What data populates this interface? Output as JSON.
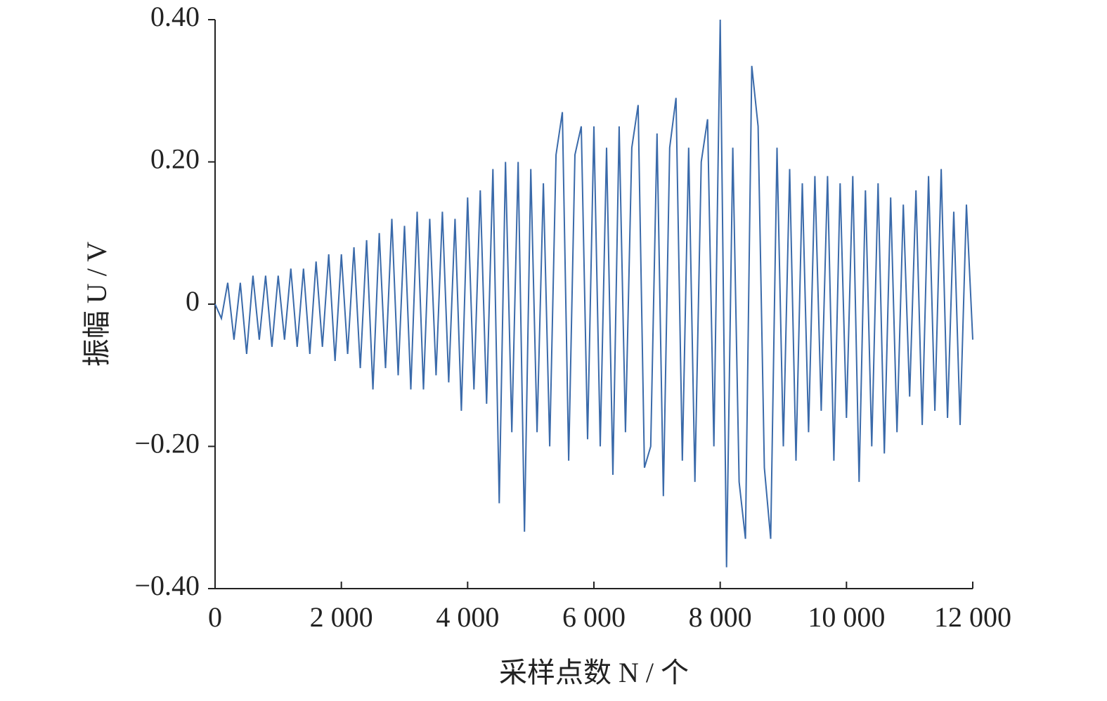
{
  "chart_data": {
    "type": "line",
    "xlabel": "采样点数 N / 个",
    "ylabel": "振幅 U / V",
    "x": [
      0,
      100,
      200,
      300,
      400,
      500,
      600,
      700,
      800,
      900,
      1000,
      1100,
      1200,
      1300,
      1400,
      1500,
      1600,
      1700,
      1800,
      1900,
      2000,
      2100,
      2200,
      2300,
      2400,
      2500,
      2600,
      2700,
      2800,
      2900,
      3000,
      3100,
      3200,
      3300,
      3400,
      3500,
      3600,
      3700,
      3800,
      3900,
      4000,
      4100,
      4200,
      4300,
      4400,
      4500,
      4600,
      4700,
      4800,
      4900,
      5000,
      5100,
      5200,
      5300,
      5400,
      5500,
      5600,
      5700,
      5800,
      5900,
      6000,
      6100,
      6200,
      6300,
      6400,
      6500,
      6600,
      6700,
      6800,
      6900,
      7000,
      7100,
      7200,
      7300,
      7400,
      7500,
      7600,
      7700,
      7800,
      7900,
      8000,
      8100,
      8200,
      8300,
      8400,
      8500,
      8600,
      8700,
      8800,
      8900,
      9000,
      9100,
      9200,
      9300,
      9400,
      9500,
      9600,
      9700,
      9800,
      9900,
      10000,
      10100,
      10200,
      10300,
      10400,
      10500,
      10600,
      10700,
      10800,
      10900,
      11000,
      11100,
      11200,
      11300,
      11400,
      11500,
      11600,
      11700,
      11800,
      11900,
      12000
    ],
    "series": [
      {
        "color": "#3a6aaa",
        "values": [
          0,
          -0.02,
          0.03,
          -0.05,
          0.03,
          -0.07,
          0.04,
          -0.05,
          0.04,
          -0.06,
          0.04,
          -0.05,
          0.05,
          -0.06,
          0.05,
          -0.07,
          0.06,
          -0.06,
          0.07,
          -0.08,
          0.07,
          -0.07,
          0.08,
          -0.09,
          0.09,
          -0.12,
          0.1,
          -0.09,
          0.12,
          -0.1,
          0.11,
          -0.12,
          0.13,
          -0.12,
          0.12,
          -0.1,
          0.13,
          -0.11,
          0.12,
          -0.15,
          0.15,
          -0.12,
          0.16,
          -0.14,
          0.19,
          -0.28,
          0.2,
          -0.18,
          0.2,
          -0.32,
          0.19,
          -0.18,
          0.17,
          -0.2,
          0.21,
          0.27,
          -0.22,
          0.21,
          0.25,
          -0.19,
          0.25,
          -0.2,
          0.22,
          -0.24,
          0.25,
          -0.18,
          0.22,
          0.28,
          -0.23,
          -0.2,
          0.24,
          -0.27,
          0.22,
          0.29,
          -0.22,
          0.22,
          -0.25,
          0.2,
          0.26,
          -0.2,
          0.4,
          -0.37,
          0.22,
          -0.25,
          -0.33,
          0.335,
          0.25,
          -0.23,
          -0.33,
          0.22,
          -0.2,
          0.19,
          -0.22,
          0.17,
          -0.18,
          0.18,
          -0.15,
          0.18,
          -0.22,
          0.17,
          -0.16,
          0.18,
          -0.25,
          0.16,
          -0.2,
          0.17,
          -0.21,
          0.15,
          -0.18,
          0.14,
          -0.13,
          0.16,
          -0.17,
          0.18,
          -0.15,
          0.19,
          -0.16,
          0.13,
          -0.17,
          0.14,
          -0.05
        ]
      }
    ],
    "xlim": [
      0,
      12000
    ],
    "xticks": [
      0,
      {
        "value": 2000,
        "label": "2 000"
      },
      {
        "value": 4000,
        "label": "4 000"
      },
      {
        "value": 6000,
        "label": "6 000"
      },
      {
        "value": 8000,
        "label": "8 000"
      },
      {
        "value": 10000,
        "label": "10 000"
      },
      {
        "value": 12000,
        "label": "12 000"
      }
    ],
    "ylim": [
      -0.4,
      0.4
    ],
    "yticks": [
      {
        "value": -0.4,
        "label": "−0.40"
      },
      {
        "value": -0.2,
        "label": "−0.20"
      },
      0,
      {
        "value": 0.2,
        "label": "0.20"
      },
      {
        "value": 0.4,
        "label": "0.40"
      }
    ]
  }
}
